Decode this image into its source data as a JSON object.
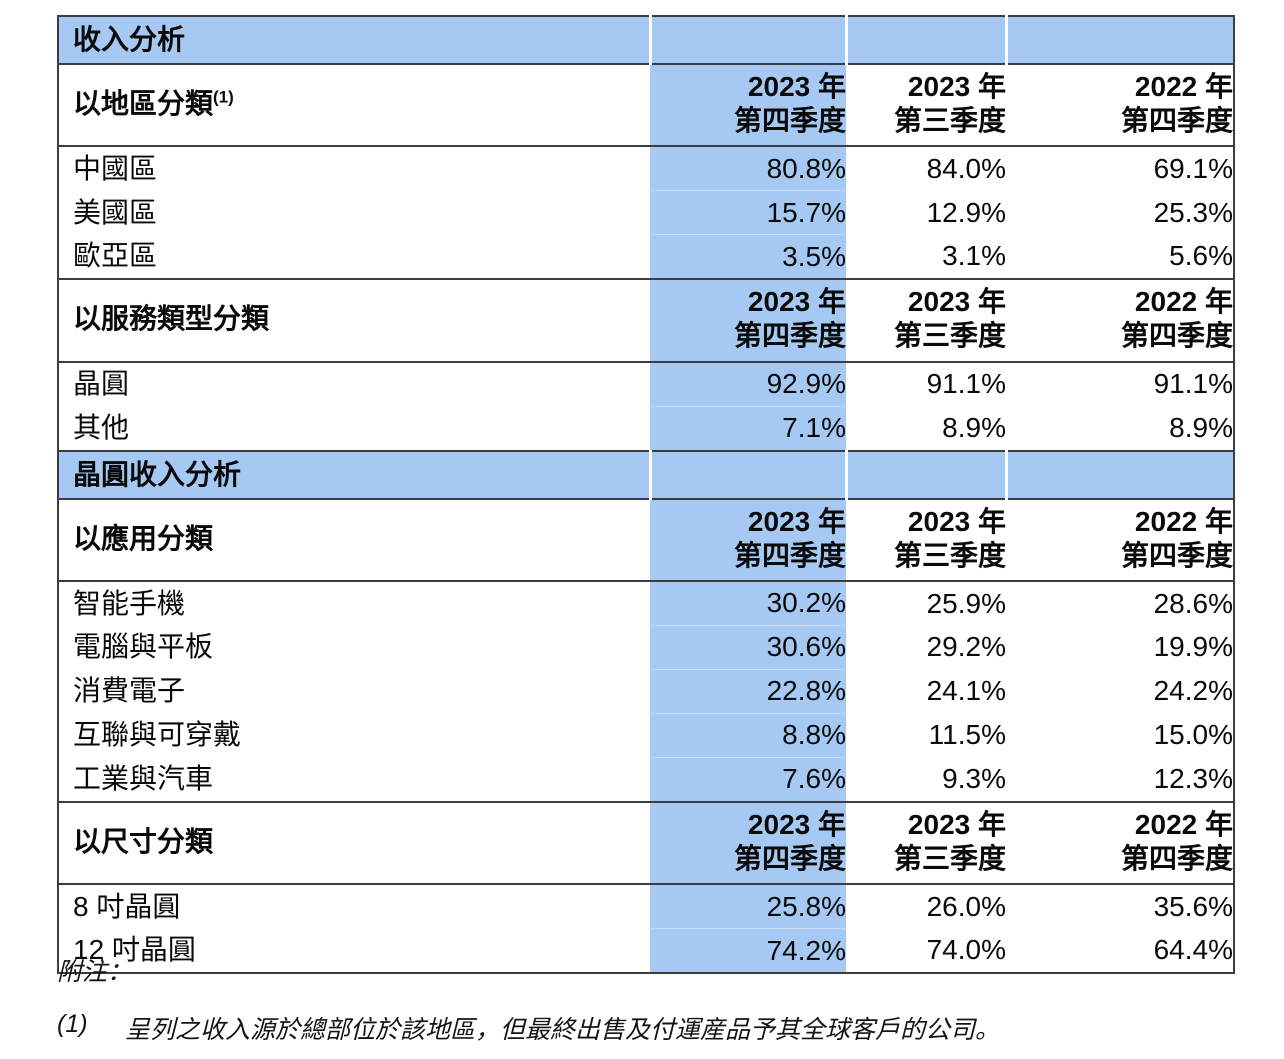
{
  "colors": {
    "highlight_blue": "#a6c9f3",
    "border_dark": "#3d3d3d",
    "row_separator_blue": "#c6dcf8"
  },
  "table": {
    "columns": [
      {
        "year": "2023 年",
        "quarter": "第四季度"
      },
      {
        "year": "2023 年",
        "quarter": "第三季度"
      },
      {
        "year": "2022 年",
        "quarter": "第四季度"
      }
    ],
    "blocks": [
      {
        "type": "title",
        "text": "收入分析"
      },
      {
        "type": "section",
        "label": "以地區分類",
        "sup": "(1)",
        "rows": [
          {
            "label": "中國區",
            "values": [
              "80.8%",
              "84.0%",
              "69.1%"
            ]
          },
          {
            "label": "美國區",
            "values": [
              "15.7%",
              "12.9%",
              "25.3%"
            ]
          },
          {
            "label": "歐亞區",
            "values": [
              "3.5%",
              "3.1%",
              "5.6%"
            ]
          }
        ]
      },
      {
        "type": "section",
        "label": "以服務類型分類",
        "sup": "",
        "rows": [
          {
            "label": "晶圓",
            "values": [
              "92.9%",
              "91.1%",
              "91.1%"
            ]
          },
          {
            "label": "其他",
            "values": [
              "7.1%",
              "8.9%",
              "8.9%"
            ]
          }
        ]
      },
      {
        "type": "title",
        "text": "晶圓收入分析"
      },
      {
        "type": "section",
        "label": "以應用分類",
        "sup": "",
        "rows": [
          {
            "label": "智能手機",
            "values": [
              "30.2%",
              "25.9%",
              "28.6%"
            ]
          },
          {
            "label": "電腦與平板",
            "values": [
              "30.6%",
              "29.2%",
              "19.9%"
            ]
          },
          {
            "label": "消費電子",
            "values": [
              "22.8%",
              "24.1%",
              "24.2%"
            ]
          },
          {
            "label": "互聯與可穿戴",
            "values": [
              "8.8%",
              "11.5%",
              "15.0%"
            ]
          },
          {
            "label": "工業與汽車",
            "values": [
              "7.6%",
              "9.3%",
              "12.3%"
            ]
          }
        ]
      },
      {
        "type": "section",
        "label": "以尺寸分類",
        "sup": "",
        "rows": [
          {
            "label": "8 吋晶圓",
            "values": [
              "25.8%",
              "26.0%",
              "35.6%"
            ]
          },
          {
            "label": "12 吋晶圓",
            "values": [
              "74.2%",
              "74.0%",
              "64.4%"
            ]
          }
        ]
      }
    ]
  },
  "footnotes": {
    "title": "附注：",
    "items": [
      {
        "marker": "(1)",
        "text": "呈列之收入源於總部位於該地區，但最終出售及付運産品予其全球客戶的公司。"
      }
    ]
  }
}
